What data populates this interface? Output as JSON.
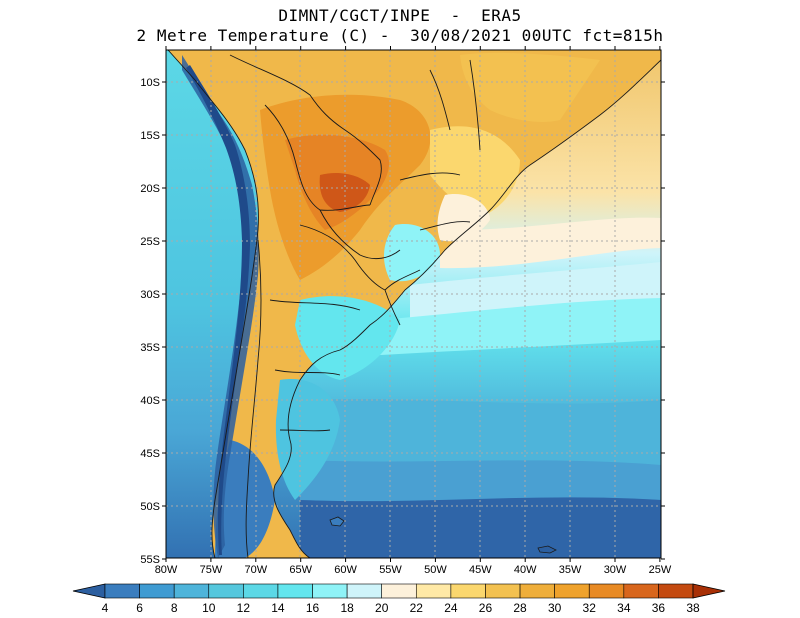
{
  "title": {
    "line1": "DIMNT/CGCT/INPE  -  ERA5",
    "line2": "2 Metre Temperature (C) -  30/08/2021 00UTC fct=815h"
  },
  "map": {
    "lon_labels": [
      "80W",
      "75W",
      "70W",
      "65W",
      "60W",
      "55W",
      "50W",
      "45W",
      "40W",
      "35W",
      "30W",
      "25W"
    ],
    "lat_labels": [
      "10S",
      "15S",
      "20S",
      "25S",
      "30S",
      "35S",
      "40S",
      "45S",
      "50S",
      "55S"
    ]
  },
  "colorbar": {
    "levels": [
      "4",
      "6",
      "8",
      "10",
      "12",
      "14",
      "16",
      "18",
      "20",
      "22",
      "24",
      "26",
      "28",
      "30",
      "32",
      "34",
      "36",
      "38"
    ],
    "colors": [
      "#2c5fa0",
      "#3a7dbe",
      "#3f9bd2",
      "#4eb4da",
      "#55c7dd",
      "#5cd8e6",
      "#63e6ee",
      "#8ff3f7",
      "#cff4fa",
      "#fdf1db",
      "#ffe9a6",
      "#fbd76e",
      "#f3c150",
      "#efae3a",
      "#efa22c",
      "#e88a24",
      "#d8661d",
      "#c44a10",
      "#a83006"
    ]
  },
  "colors": {
    "land_hot": "#f1b545",
    "ocean_cold": "#3274b4"
  }
}
